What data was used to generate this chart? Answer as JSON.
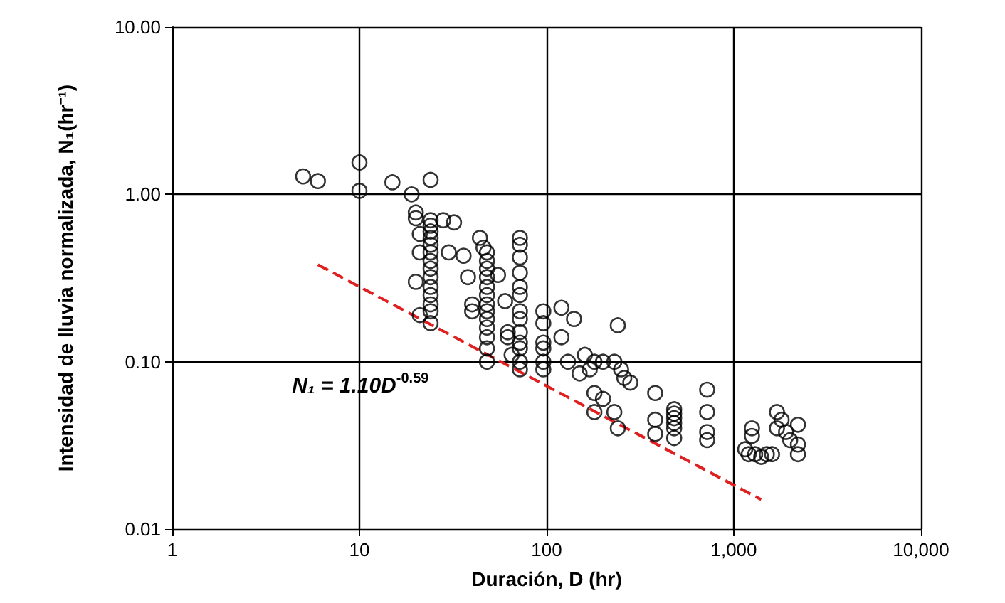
{
  "chart_data": {
    "type": "scatter",
    "xlabel": "Duración, D (hr)",
    "ylabel": "Intensidad de lluvia normalizada, N₁(hr⁻¹)",
    "log": "xy",
    "grid": true,
    "marker": "circle",
    "xlim": [
      1,
      10000
    ],
    "ylim": [
      0.01,
      10
    ],
    "xticks": [
      1,
      10,
      100,
      {
        "value": 1000,
        "label": "1,000"
      },
      {
        "value": 10000,
        "label": "10,000"
      }
    ],
    "yticks": [
      {
        "value": 0.01,
        "label": "0.01"
      },
      {
        "value": 0.1,
        "label": "0.10"
      },
      {
        "value": 1,
        "label": "1.00"
      },
      {
        "value": 10,
        "label": "10.00"
      }
    ],
    "series": [
      {
        "type": "scatter",
        "color": "#000000",
        "x": [
          5,
          6,
          10,
          10,
          15,
          19,
          24,
          20,
          20,
          21,
          24,
          24,
          24,
          24,
          24,
          24,
          24,
          24,
          24,
          24,
          24,
          24,
          24,
          24,
          21,
          20,
          21,
          28,
          30,
          36,
          32,
          38,
          40,
          40,
          44,
          46,
          48,
          48,
          48,
          48,
          48,
          48,
          48,
          48,
          48,
          48,
          48,
          48,
          48,
          55,
          60,
          62,
          62,
          72,
          72,
          72,
          72,
          72,
          72,
          72,
          72,
          72,
          72,
          72,
          72,
          65,
          72,
          96,
          96,
          96,
          96,
          96,
          96,
          120,
          120,
          130,
          140,
          160,
          150,
          170,
          180,
          200,
          230,
          240,
          250,
          260,
          280,
          180,
          200,
          180,
          230,
          240,
          380,
          380,
          380,
          480,
          480,
          480,
          480,
          480,
          480,
          720,
          720,
          720,
          720,
          1150,
          1200,
          1250,
          1250,
          1300,
          1400,
          1500,
          1700,
          1700,
          1800,
          1900,
          2000,
          2200,
          2200,
          2200,
          1600
        ],
        "values": [
          1.28,
          1.2,
          1.55,
          1.05,
          1.18,
          1.0,
          1.22,
          0.78,
          0.72,
          0.58,
          0.7,
          0.65,
          0.6,
          0.55,
          0.5,
          0.45,
          0.4,
          0.36,
          0.32,
          0.28,
          0.25,
          0.22,
          0.2,
          0.17,
          0.45,
          0.3,
          0.19,
          0.7,
          0.45,
          0.43,
          0.68,
          0.32,
          0.22,
          0.2,
          0.55,
          0.48,
          0.45,
          0.4,
          0.36,
          0.32,
          0.28,
          0.25,
          0.22,
          0.2,
          0.18,
          0.16,
          0.14,
          0.12,
          0.1,
          0.33,
          0.23,
          0.15,
          0.14,
          0.55,
          0.5,
          0.42,
          0.34,
          0.28,
          0.25,
          0.2,
          0.18,
          0.15,
          0.13,
          0.12,
          0.1,
          0.11,
          0.09,
          0.2,
          0.17,
          0.13,
          0.12,
          0.1,
          0.09,
          0.21,
          0.14,
          0.1,
          0.18,
          0.11,
          0.085,
          0.09,
          0.1,
          0.1,
          0.1,
          0.165,
          0.09,
          0.08,
          0.075,
          0.065,
          0.06,
          0.05,
          0.05,
          0.04,
          0.065,
          0.045,
          0.037,
          0.052,
          0.049,
          0.046,
          0.043,
          0.04,
          0.035,
          0.068,
          0.05,
          0.038,
          0.034,
          0.03,
          0.028,
          0.04,
          0.036,
          0.028,
          0.027,
          0.028,
          0.05,
          0.04,
          0.045,
          0.038,
          0.034,
          0.042,
          0.032,
          0.028,
          0.028
        ]
      },
      {
        "type": "line",
        "color": "#e02020",
        "line_style": "dashed",
        "marker": "none",
        "x": [
          6,
          1400
        ],
        "values": [
          0.38,
          0.015
        ]
      }
    ],
    "annotations": [
      "N₁ = 1.10D$^{-0.59}$"
    ]
  }
}
